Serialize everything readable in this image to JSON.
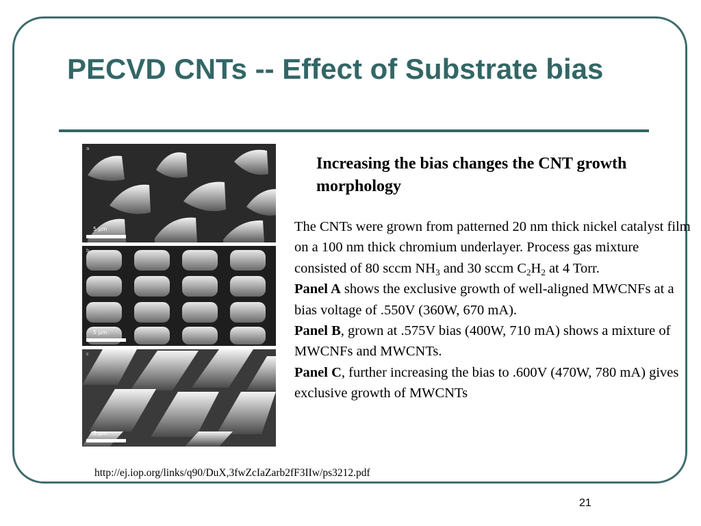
{
  "slide": {
    "title": "PECVD CNTs -- Effect of Substrate bias",
    "headline": "Increasing the bias changes the CNT growth morphology",
    "paragraphs": {
      "intro_1": "The CNTs were grown from patterned 20 nm thick nickel catalyst film on a 100 nm thick chromium underlayer. Process gas mixture consisted of 80 sccm NH",
      "nh3_sub": "3",
      "intro_2": " and 30 sccm C",
      "c2h2_sub_1": "2",
      "h_letter": "H",
      "c2h2_sub_2": "2",
      "intro_3": " at 4 Torr.",
      "panel_a_label": "Panel A",
      "panel_a_text": " shows the exclusive growth of well-aligned MWCNFs at a bias voltage of .550V (360W, 670 mA).",
      "panel_b_label": "Panel B",
      "panel_b_text": ", grown at .575V bias (400W, 710 mA) shows a mixture of MWCNFs and MWCNTs.",
      "panel_c_label": "Panel C",
      "panel_c_text": ", further increasing the bias to .600V (470W, 780 mA) gives exclusive growth of MWCNTs"
    },
    "source_url": "http://ej.iop.org/links/q90/DuX,3fwZcIaZarb2fF3IIw/ps3212.pdf",
    "page_number": "21",
    "colors": {
      "title": "#336666",
      "frame": "#3f6b6c"
    }
  },
  "micrographs": [
    {
      "letter": "a",
      "scale_label": "5 µm"
    },
    {
      "letter": "b",
      "scale_label": "5 µm"
    },
    {
      "letter": "c",
      "scale_label": "5 µm"
    }
  ]
}
